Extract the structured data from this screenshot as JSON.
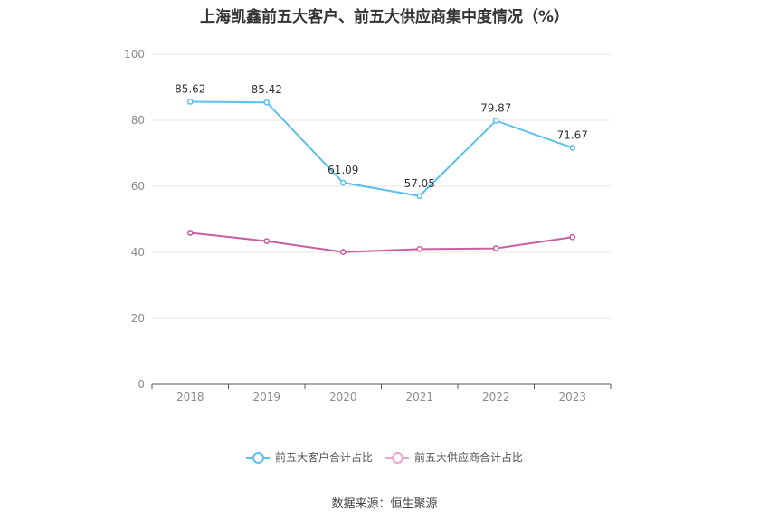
{
  "title": "上海凯鑫前五大客户、前五大供应商集中度情况（%）",
  "source": "数据来源：恒生聚源",
  "chart_data": {
    "type": "line",
    "title": "上海凯鑫前五大客户、前五大供应商集中度情况（%）",
    "categories": [
      "2018",
      "2019",
      "2020",
      "2021",
      "2022",
      "2023"
    ],
    "ylim": [
      0,
      100
    ],
    "yticks": [
      0,
      20,
      40,
      60,
      80,
      100
    ],
    "grid": true,
    "legend_position": "bottom",
    "series": [
      {
        "name": "前五大客户合计占比",
        "values": [
          85.62,
          85.42,
          61.09,
          57.05,
          79.87,
          71.67
        ],
        "color": "#5bc0eb",
        "show_labels": true
      },
      {
        "name": "前五大供应商合计占比",
        "values": [
          45.9,
          43.4,
          40.1,
          41.0,
          41.2,
          44.6
        ],
        "color": "#c95fa3",
        "show_labels": false
      }
    ]
  }
}
